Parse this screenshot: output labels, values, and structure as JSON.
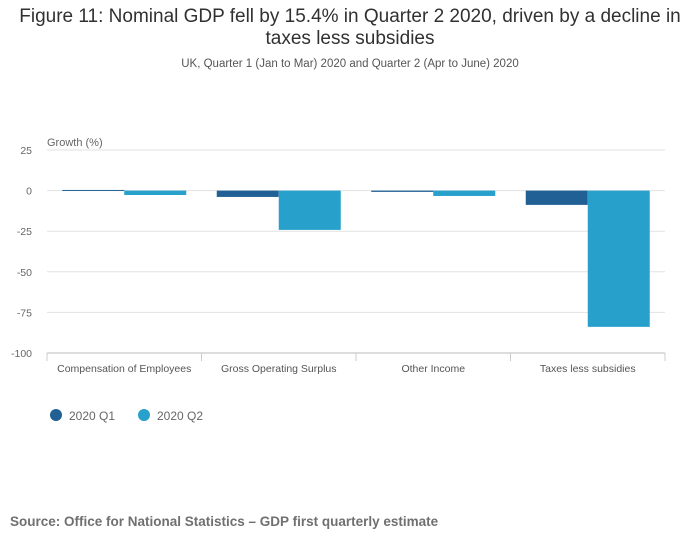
{
  "title": "Figure 11: Nominal GDP fell by 15.4% in Quarter 2 2020, driven by a decline in taxes less subsidies",
  "subtitle": "UK, Quarter 1 (Jan to Mar) 2020 and Quarter 2 (Apr to June) 2020",
  "source": "Source: Office for National Statistics – GDP first quarterly estimate",
  "chart_data": {
    "type": "bar",
    "ylabel": "Growth (%)",
    "ylim": [
      -100,
      25
    ],
    "yticks": [
      25,
      0,
      -25,
      -50,
      -75,
      -100
    ],
    "grid": true,
    "legend_position": "bottom-left",
    "categories": [
      "Compensation of Employees",
      "Gross Operating Surplus",
      "Other Income",
      "Taxes less subsidies"
    ],
    "series": [
      {
        "name": "2020 Q1",
        "color": "#206095",
        "values": [
          0.4,
          -3.9,
          -0.8,
          -8.8
        ]
      },
      {
        "name": "2020 Q2",
        "color": "#27a0cc",
        "values": [
          -2.7,
          -24.2,
          -3.3,
          -83.9
        ]
      }
    ]
  }
}
